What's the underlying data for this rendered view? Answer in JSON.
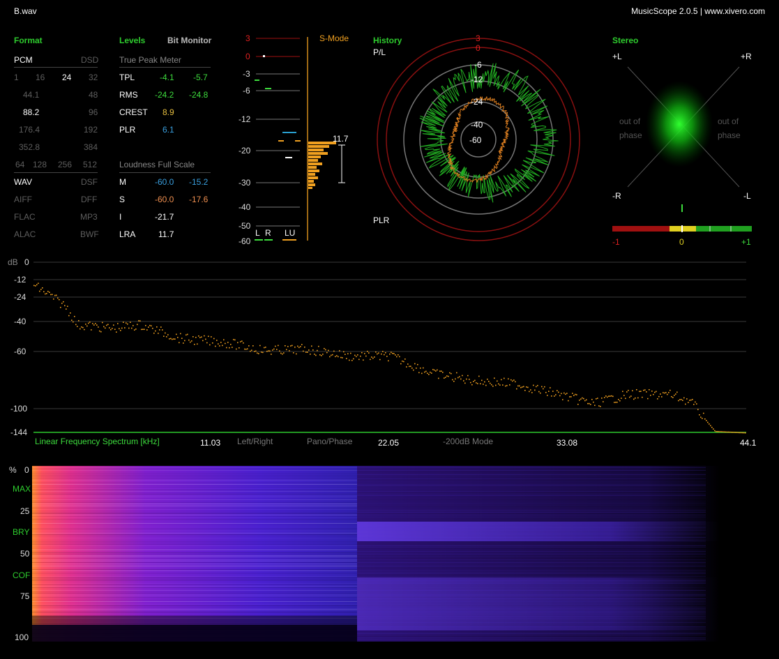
{
  "window": {
    "file": "B.wav",
    "title": "MusicScope 2.0.5 | www.xivero.com"
  },
  "format": {
    "heading": "Format",
    "pcm": "PCM",
    "dsd": "DSD",
    "bits": [
      "1",
      "16",
      "24",
      "32"
    ],
    "rates": [
      {
        "pcm": "44.1",
        "dsd": "48"
      },
      {
        "pcm": "88.2",
        "dsd": "96"
      },
      {
        "pcm": "176.4",
        "dsd": "192"
      },
      {
        "pcm": "352.8",
        "dsd": "384"
      }
    ],
    "dsd_rates": [
      "64",
      "128",
      "256",
      "512"
    ],
    "containers": [
      {
        "a": "WAV",
        "b": "DSF"
      },
      {
        "a": "AIFF",
        "b": "DFF"
      },
      {
        "a": "FLAC",
        "b": "MP3"
      },
      {
        "a": "ALAC",
        "b": "BWF"
      }
    ]
  },
  "levels": {
    "heading": "Levels",
    "bit_monitor": "Bit Monitor",
    "true_peak_title": "True Peak Meter",
    "rows": [
      {
        "label": "TPL",
        "l": "-4.1",
        "r": "-5.7"
      },
      {
        "label": "RMS",
        "l": "-24.2",
        "r": "-24.8"
      },
      {
        "label": "CREST",
        "l": "8.9",
        "r": ""
      },
      {
        "label": "PLR",
        "l": "6.1",
        "r": ""
      }
    ],
    "loudness_title": "Loudness Full Scale",
    "loud_rows": [
      {
        "label": "M",
        "a": "-60.0",
        "b": "-15.2"
      },
      {
        "label": "S",
        "a": "-60.0",
        "b": "-17.6"
      },
      {
        "label": "I",
        "a": "-21.7",
        "b": ""
      },
      {
        "label": "LRA",
        "a": "11.7",
        "b": ""
      }
    ]
  },
  "meter": {
    "mode": "S-Mode",
    "scale": [
      "3",
      "0",
      "-3",
      "-6",
      "-12",
      "-20",
      "-30",
      "-40",
      "-50",
      "-60"
    ],
    "lra_value": "11.7",
    "foot": [
      "L",
      "R",
      "LU"
    ]
  },
  "history": {
    "heading": "History",
    "top_label": "P/L",
    "bottom_label": "PLR",
    "rings": [
      "3",
      "0",
      "-6",
      "-12",
      "-24",
      "-40",
      "-60"
    ]
  },
  "stereo": {
    "heading": "Stereo",
    "corners": {
      "tl": "+L",
      "tr": "+R",
      "bl": "-R",
      "br": "-L"
    },
    "out_of_phase": "out of\nphase",
    "corr_labels": [
      "-1",
      "0",
      "+1"
    ]
  },
  "spectrum": {
    "unit": "dB",
    "y_ticks": [
      "0",
      "-12",
      "-24",
      "-40",
      "-60",
      "-100",
      "-144"
    ],
    "title": "Linear Frequency Spectrum [kHz]",
    "x_ticks": [
      "11.03",
      "22.05",
      "33.08",
      "44.1"
    ],
    "modes": [
      "Left/Right",
      "Pano/Phase",
      "-200dB Mode"
    ]
  },
  "spectrogram": {
    "y_labels": [
      {
        "text": "% ",
        "value": "0",
        "color": "#ddd"
      },
      {
        "text": "MAX",
        "value": "",
        "color": "#2ecc2e"
      },
      {
        "text": "",
        "value": "25",
        "color": "#ddd"
      },
      {
        "text": "BRY",
        "value": "",
        "color": "#2ecc2e"
      },
      {
        "text": "",
        "value": "50",
        "color": "#ddd"
      },
      {
        "text": "COF",
        "value": "",
        "color": "#2ecc2e"
      },
      {
        "text": "",
        "value": "75",
        "color": "#ddd"
      },
      {
        "text": "",
        "value": "100",
        "color": "#ddd"
      }
    ]
  },
  "colors": {
    "green": "#2ecc2e",
    "orange": "#f0a020",
    "blue": "#3aa0e0",
    "salmon": "#f09050",
    "red": "#c01010",
    "grey": "#888888"
  }
}
